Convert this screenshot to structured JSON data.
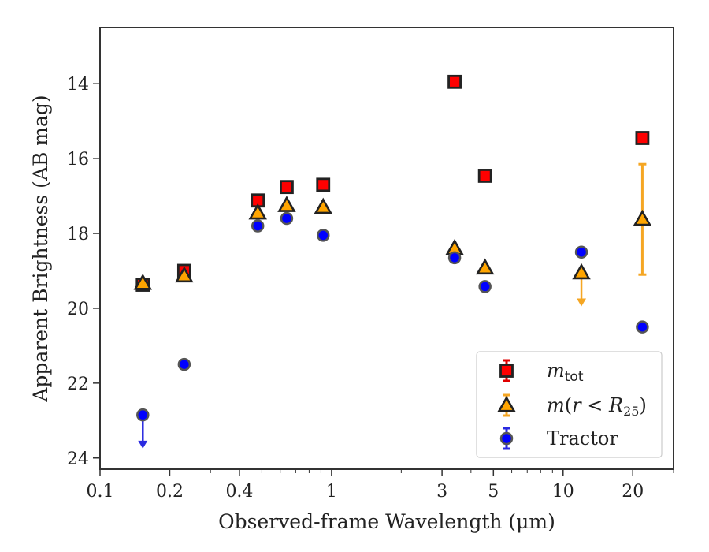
{
  "chart_data": {
    "type": "scatter",
    "xlabel": "Observed-frame Wavelength (μm)",
    "ylabel": "Apparent Brightness (AB mag)",
    "xscale": "log",
    "xlim": [
      0.1,
      30
    ],
    "ylim": [
      24.3,
      12.5
    ],
    "y_inverted": true,
    "x_ticks": [
      0.1,
      0.2,
      0.4,
      1,
      3,
      5,
      10,
      20
    ],
    "x_tick_labels": [
      "0.1",
      "0.2",
      "0.4",
      "1",
      "3",
      "5",
      "10",
      "20"
    ],
    "y_ticks": [
      14,
      16,
      18,
      20,
      22,
      24
    ],
    "y_tick_labels": [
      "14",
      "16",
      "18",
      "20",
      "22",
      "24"
    ],
    "legend_position": "lower-right",
    "grid": false,
    "series": [
      {
        "legend_label": "m_tot",
        "marker": "square",
        "color": "#ff0000",
        "errorbar_color": "#e00000",
        "points": [
          {
            "x": 0.153,
            "y": 19.37
          },
          {
            "x": 0.231,
            "y": 19.0
          },
          {
            "x": 0.48,
            "y": 17.12
          },
          {
            "x": 0.64,
            "y": 16.76
          },
          {
            "x": 0.92,
            "y": 16.7
          },
          {
            "x": 3.4,
            "y": 13.95
          },
          {
            "x": 4.6,
            "y": 16.46
          },
          {
            "x": 22.0,
            "y": 15.45
          }
        ]
      },
      {
        "legend_label": "m(r < R25)",
        "marker": "triangle",
        "color": "#ffa500",
        "errorbar_color": "#f5a623",
        "points": [
          {
            "x": 0.153,
            "y": 19.33
          },
          {
            "x": 0.231,
            "y": 19.13
          },
          {
            "x": 0.48,
            "y": 17.45
          },
          {
            "x": 0.64,
            "y": 17.25
          },
          {
            "x": 0.92,
            "y": 17.3
          },
          {
            "x": 3.4,
            "y": 18.4
          },
          {
            "x": 4.6,
            "y": 18.92
          },
          {
            "x": 12.0,
            "y": 19.05,
            "upper_limit": true,
            "limit_to": 19.95
          },
          {
            "x": 22.0,
            "y": 17.62,
            "yerr_low": 16.15,
            "yerr_high": 19.1
          }
        ]
      },
      {
        "legend_label": "Tractor",
        "marker": "circle",
        "color": "#0000ff",
        "errorbar_color": "#2a2ae0",
        "points": [
          {
            "x": 0.153,
            "y": 22.85,
            "upper_limit": true,
            "limit_to": 23.75
          },
          {
            "x": 0.231,
            "y": 21.5
          },
          {
            "x": 0.48,
            "y": 17.8
          },
          {
            "x": 0.64,
            "y": 17.6
          },
          {
            "x": 0.92,
            "y": 18.05
          },
          {
            "x": 3.4,
            "y": 18.65
          },
          {
            "x": 4.6,
            "y": 19.42
          },
          {
            "x": 12.0,
            "y": 18.5
          },
          {
            "x": 22.0,
            "y": 20.5
          }
        ]
      }
    ]
  }
}
